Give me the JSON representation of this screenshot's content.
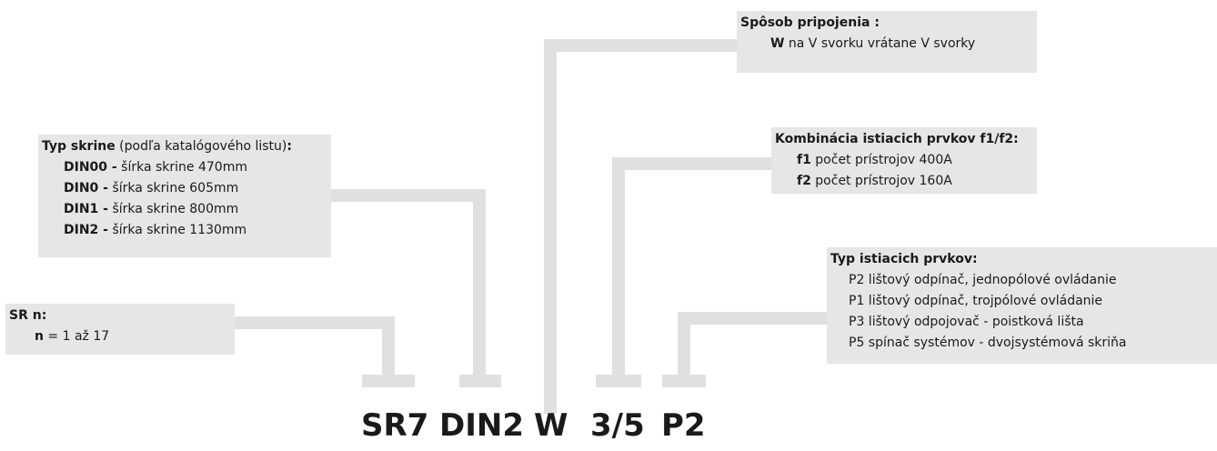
{
  "code": [
    "SR7",
    "DIN2",
    "W",
    "3/5",
    "P2"
  ],
  "connection": {
    "title": "Spôsob pripojenia :",
    "lines": [
      {
        "key": "W",
        "text": "na V svorku vrátane V svorky"
      }
    ]
  },
  "combination": {
    "title": "Kombinácia istiacich prvkov f1/f2:",
    "lines": [
      {
        "key": "f1",
        "text": "počet prístrojov 400A"
      },
      {
        "key": "f2",
        "text": "počet prístrojov 160A"
      }
    ]
  },
  "cabinet": {
    "title": "Typ skrine",
    "note": "(podľa katalógového listu)",
    "suffix": ":",
    "lines": [
      {
        "key": "DIN00 -",
        "text": "šírka skrine 470mm"
      },
      {
        "key": "DIN0 -",
        "text": "šírka skrine 605mm"
      },
      {
        "key": "DIN1 -",
        "text": "šírka skrine 800mm"
      },
      {
        "key": "DIN2 -",
        "text": "šírka skrine 1130mm"
      }
    ]
  },
  "protection": {
    "title": "Typ istiacich prvkov:",
    "lines": [
      "P2 lištový odpínač, jednopólové ovládanie",
      "P1 lištový odpínač, trojpólové ovládanie",
      "P3 lištový odpojovač - poistková lišta",
      "P5 spínač systémov - dvojsystémová skriňa"
    ]
  },
  "sr": {
    "title": "SR n:",
    "lines": [
      {
        "key": "n",
        "text": "= 1 až 17"
      }
    ]
  }
}
